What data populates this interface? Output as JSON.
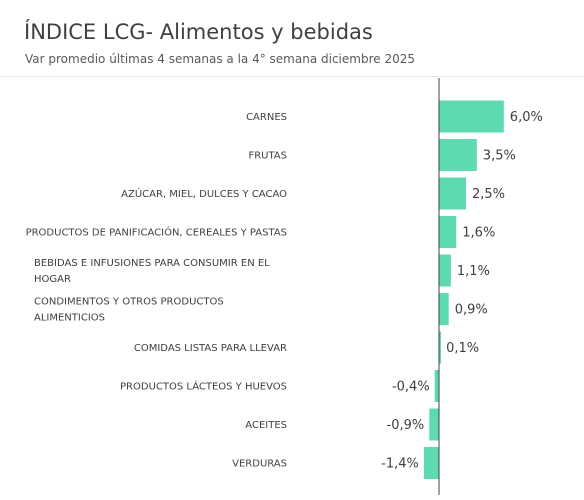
{
  "header": {
    "title": "ÍNDICE LCG- Alimentos y bebidas",
    "subtitle": "Var promedio últimas 4 semanas a la 4° semana diciembre 2025"
  },
  "colors": {
    "bar": "#5ddab0",
    "axis": "#404040",
    "text": "#404040"
  },
  "chart_data": {
    "type": "bar",
    "orientation": "horizontal",
    "title": "ÍNDICE LCG- Alimentos y bebidas",
    "subtitle": "Var promedio últimas 4 semanas a la 4° semana diciembre 2025",
    "categories": [
      "CARNES",
      "FRUTAS",
      "AZÚCAR, MIEL, DULCES Y CACAO",
      "PRODUCTOS DE PANIFICACIÓN, CEREALES Y PASTAS",
      "BEBIDAS E INFUSIONES PARA CONSUMIR EN EL HOGAR",
      "CONDIMENTOS Y OTROS PRODUCTOS ALIMENTICIOS",
      "COMIDAS LISTAS PARA LLEVAR",
      "PRODUCTOS LÁCTEOS Y HUEVOS",
      "ACEITES",
      "VERDURAS"
    ],
    "category_lines": [
      [
        "CARNES"
      ],
      [
        "FRUTAS"
      ],
      [
        "AZÚCAR, MIEL, DULCES Y CACAO"
      ],
      [
        "PRODUCTOS DE PANIFICACIÓN, CEREALES Y PASTAS"
      ],
      [
        "BEBIDAS E INFUSIONES PARA CONSUMIR EN EL",
        "HOGAR"
      ],
      [
        "CONDIMENTOS Y OTROS PRODUCTOS",
        "ALIMENTICIOS"
      ],
      [
        "COMIDAS LISTAS PARA LLEVAR"
      ],
      [
        "PRODUCTOS LÁCTEOS Y HUEVOS"
      ],
      [
        "ACEITES"
      ],
      [
        "VERDURAS"
      ]
    ],
    "values": [
      6.0,
      3.5,
      2.5,
      1.6,
      1.1,
      0.9,
      0.1,
      -0.4,
      -0.9,
      -1.4
    ],
    "value_labels": [
      "6,0%",
      "3,5%",
      "2,5%",
      "1,6%",
      "1,1%",
      "0,9%",
      "0,1%",
      "-0,4%",
      "-0,9%",
      "-1,4%"
    ],
    "unit": "%",
    "grid": false,
    "legend": "none"
  }
}
